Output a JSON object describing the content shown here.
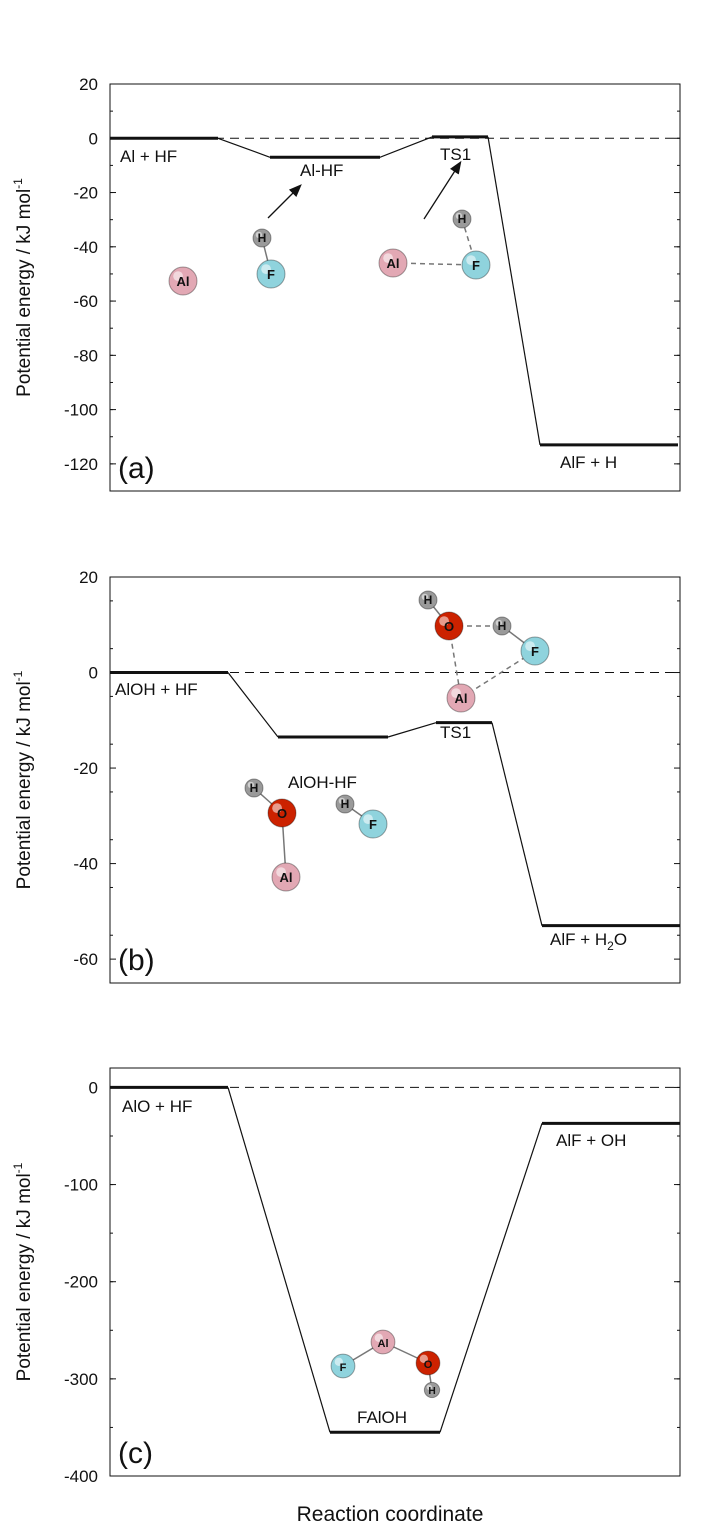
{
  "colors": {
    "axis": "#111111",
    "line": "#111111",
    "aluminium_atom": "#e2a8b4",
    "fluorine_atom": "#8fd3dd",
    "hydrogen_atom": "#9a9a9a",
    "oxygen_atom": "#cc2200"
  },
  "xlabel": "Reaction coordinate",
  "chart_data": [
    {
      "type": "line",
      "panel_label": "(a)",
      "ylabel": "Potential energy / kJ mol",
      "ylabel_sup": "-1",
      "ylim": [
        -130,
        20
      ],
      "yticks": [
        20,
        0,
        -20,
        -40,
        -60,
        -80,
        -100,
        -120
      ],
      "reference_line": 0,
      "levels": [
        {
          "label": "Al + HF",
          "energy": 0
        },
        {
          "label": "Al-HF",
          "energy": -7
        },
        {
          "label": "TS1",
          "energy": 0.5
        },
        {
          "label": "AlF + H",
          "energy": -113
        }
      ],
      "structures": [
        {
          "name": "Al-atom",
          "atoms": [
            "Al"
          ]
        },
        {
          "name": "Al-HF-complex",
          "atoms": [
            "H",
            "F"
          ]
        },
        {
          "name": "TS1-structure",
          "atoms": [
            "Al",
            "H",
            "F"
          ]
        }
      ]
    },
    {
      "type": "line",
      "panel_label": "(b)",
      "ylabel": "Potential energy / kJ mol",
      "ylabel_sup": "-1",
      "ylim": [
        -65,
        20
      ],
      "yticks": [
        20,
        0,
        -20,
        -40,
        -60
      ],
      "reference_line": 0,
      "levels": [
        {
          "label": "AlOH + HF",
          "energy": 0
        },
        {
          "label": "AlOH-HF",
          "energy": -13.5
        },
        {
          "label": "TS1",
          "energy": -10.5
        },
        {
          "label": "AlF + H",
          "label_sub": "2",
          "label_tail": "O",
          "energy": -53
        }
      ],
      "structures": [
        {
          "name": "TS1-structure",
          "atoms": [
            "H",
            "O",
            "H",
            "F",
            "Al"
          ]
        },
        {
          "name": "AlOH-HF-complex",
          "atoms": [
            "H",
            "O",
            "Al",
            "H",
            "F"
          ]
        }
      ]
    },
    {
      "type": "line",
      "panel_label": "(c)",
      "ylabel": "Potential energy / kJ mol",
      "ylabel_sup": "-1",
      "ylim": [
        -400,
        20
      ],
      "yticks": [
        0,
        -100,
        -200,
        -300,
        -400
      ],
      "reference_line": 0,
      "levels": [
        {
          "label": "AlO + HF",
          "energy": 0
        },
        {
          "label": "FAlOH",
          "energy": -355
        },
        {
          "label": "AlF + OH",
          "energy": -37
        }
      ],
      "structures": [
        {
          "name": "FAlOH-structure",
          "atoms": [
            "F",
            "Al",
            "O",
            "H"
          ]
        }
      ]
    }
  ]
}
